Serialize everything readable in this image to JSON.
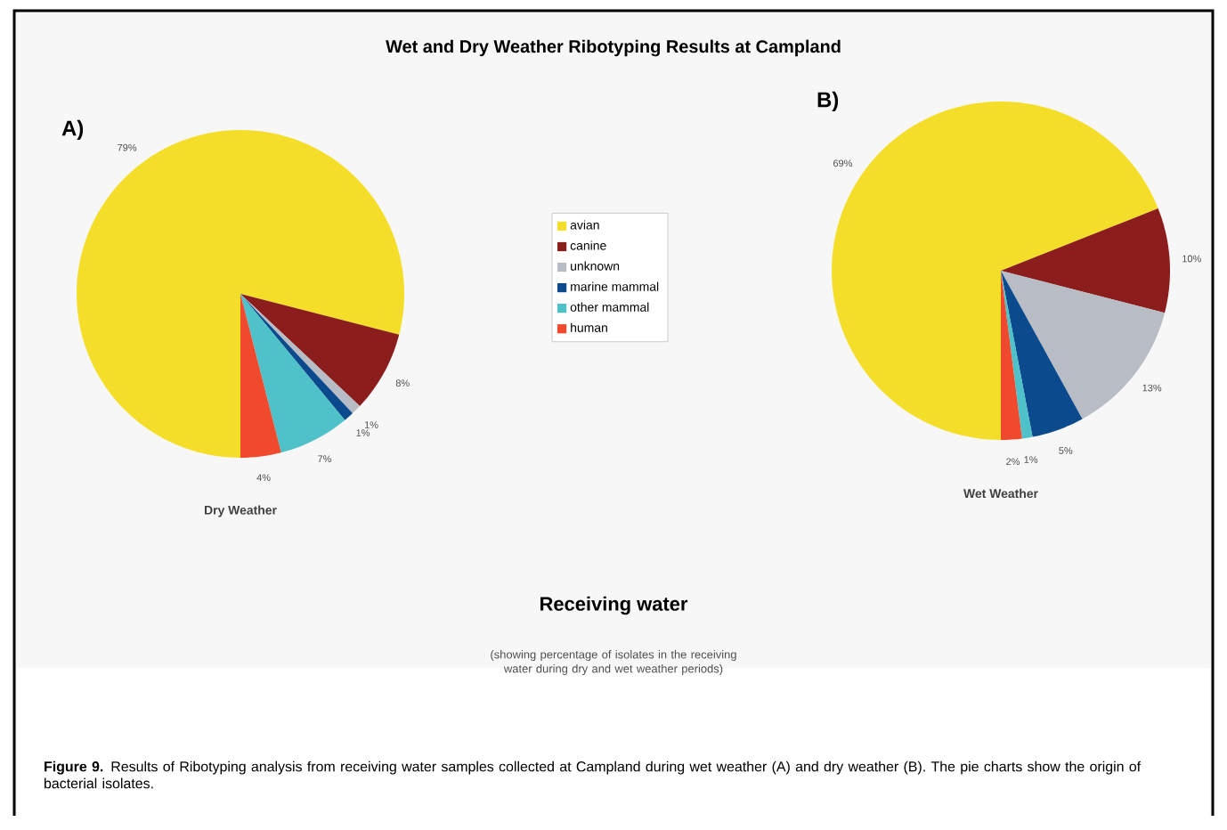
{
  "chart_data": [
    {
      "type": "pie",
      "title": "Wet and Dry Weather Ribotyping Results at Campland",
      "subtitle": "A)",
      "xlabel": "Dry Weather",
      "categories": [
        "avian",
        "canine",
        "unknown",
        "marine mammal",
        "other mammal",
        "human"
      ],
      "values": [
        79,
        8,
        1,
        1,
        7,
        4
      ],
      "value_labels": [
        "79%",
        "8%",
        "1%",
        "1%",
        "7%",
        "4%"
      ],
      "colors": [
        "#f5de2a",
        "#8b1d1d",
        "#b8bcc4",
        "#0b4a8c",
        "#4fc1c8",
        "#f04a2e"
      ],
      "legend": "right",
      "annotations": [
        "Receiving water",
        "(showing percentage of isolates in the receiving water during dry and wet weather periods)",
        "**Figure 9.** Results of Ribotyping analysis from receiving water samples collected at Campland during wet weather (A) and dry weather (B). The pie charts show the origin of bacterial isolates."
      ]
    },
    {
      "type": "pie",
      "subtitle": "B)",
      "xlabel": "Wet Weather",
      "categories": [
        null,
        null,
        null,
        null,
        null,
        null
      ],
      "values": [
        69,
        10,
        13,
        5,
        1,
        2
      ],
      "value_labels": [
        "69%",
        "10%",
        "13%",
        "5%",
        "1%",
        "2%"
      ],
      "colors": [
        "#f5de2a",
        "#8b1d1d",
        "#b8bcc4",
        "#0b4a8c",
        "#4fc1c8",
        "#f04a2e"
      ]
    }
  ]
}
